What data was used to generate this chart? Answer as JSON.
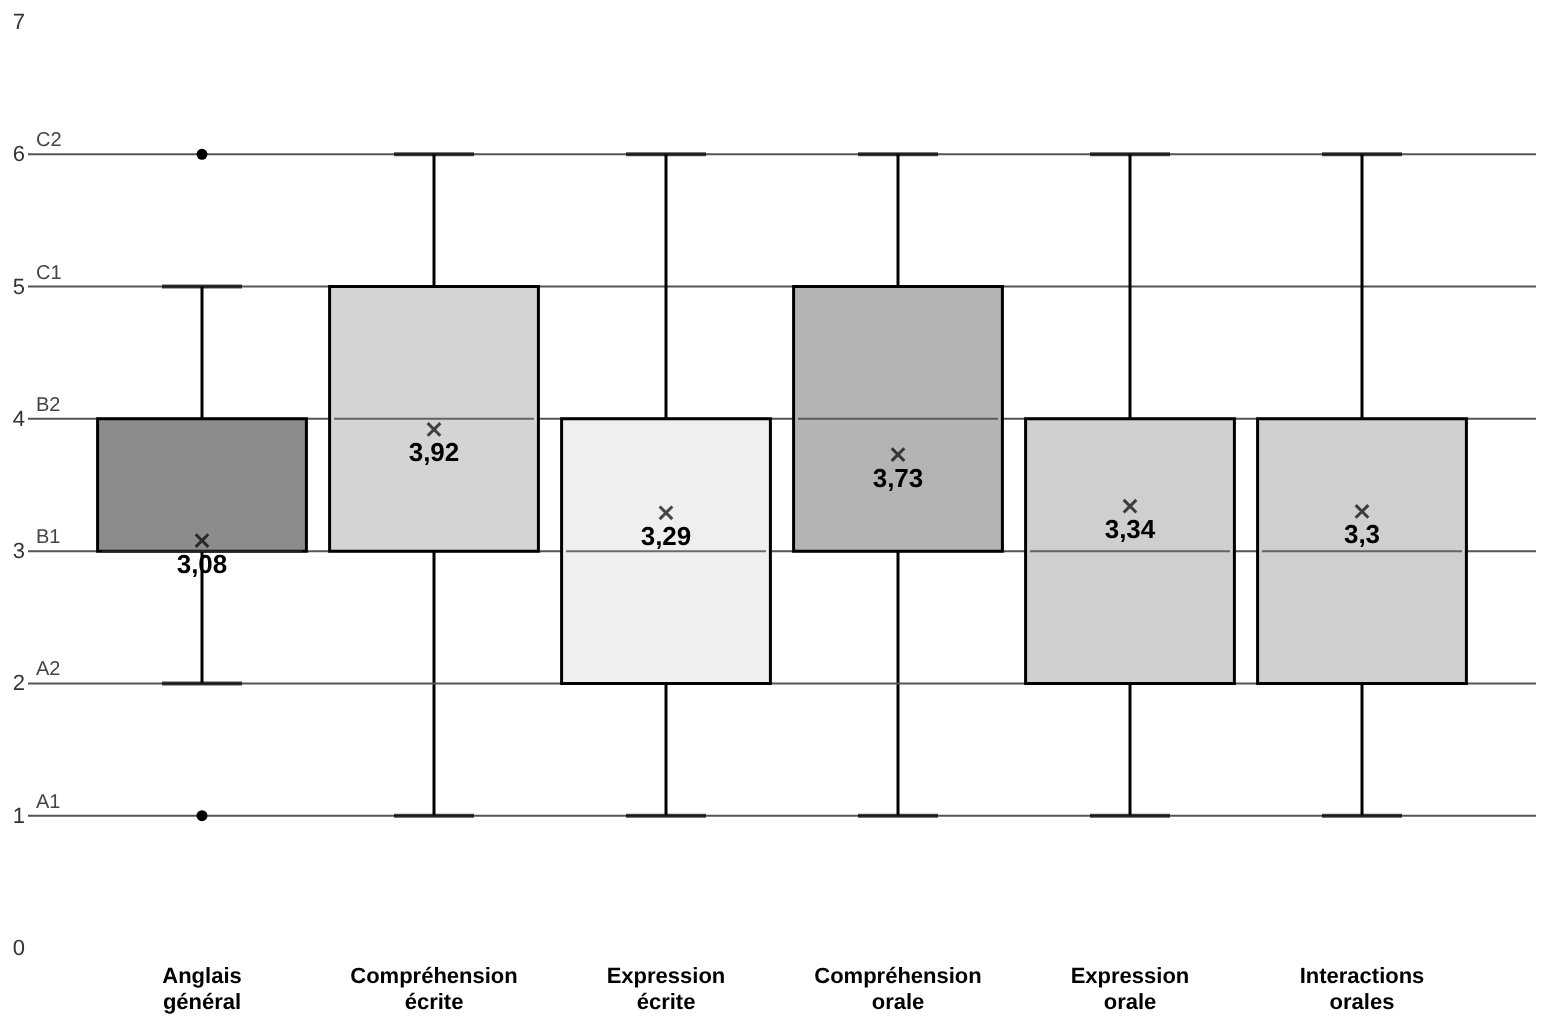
{
  "chart_data": {
    "type": "box",
    "categories": [
      "Anglais général",
      "Compréhension écrite",
      "Expression écrite",
      "Compréhension orale",
      "Expression orale",
      "Interactions orales"
    ],
    "boxes": [
      {
        "low": 2,
        "q1": 3,
        "median": 3,
        "q3": 4,
        "high": 5,
        "mean": 3.08,
        "outliers": [
          1,
          6
        ]
      },
      {
        "low": 1,
        "q1": 3,
        "median": 4,
        "q3": 5,
        "high": 6,
        "mean": 3.92
      },
      {
        "low": 1,
        "q1": 2,
        "median": 3,
        "q3": 4,
        "high": 6,
        "mean": 3.29
      },
      {
        "low": 1,
        "q1": 3,
        "median": 4,
        "q3": 5,
        "high": 6,
        "mean": 3.73
      },
      {
        "low": 1,
        "q1": 2,
        "median": 3,
        "q3": 4,
        "high": 6,
        "mean": 3.34
      },
      {
        "low": 1,
        "q1": 2,
        "median": 3,
        "q3": 4,
        "high": 6,
        "mean": 3.3
      }
    ],
    "colors": [
      "#8c8c8c",
      "#d4d4d4",
      "#efefef",
      "#b4b4b4",
      "#cfcfcf",
      "#cfcfcf"
    ],
    "value_labels": [
      "3,08",
      "3,92",
      "3,29",
      "3,73",
      "3,34",
      "3,3"
    ],
    "ylim": [
      0,
      7
    ],
    "yticks": [
      0,
      1,
      2,
      3,
      4,
      5,
      6,
      7
    ],
    "grid": false,
    "ref_lines": [
      {
        "axis": "y",
        "value": 1,
        "label": "A1"
      },
      {
        "axis": "y",
        "value": 2,
        "label": "A2"
      },
      {
        "axis": "y",
        "value": 3,
        "label": "B1"
      },
      {
        "axis": "y",
        "value": 4,
        "label": "B2"
      },
      {
        "axis": "y",
        "value": 5,
        "label": "C1"
      },
      {
        "axis": "y",
        "value": 6,
        "label": "C2"
      }
    ]
  }
}
